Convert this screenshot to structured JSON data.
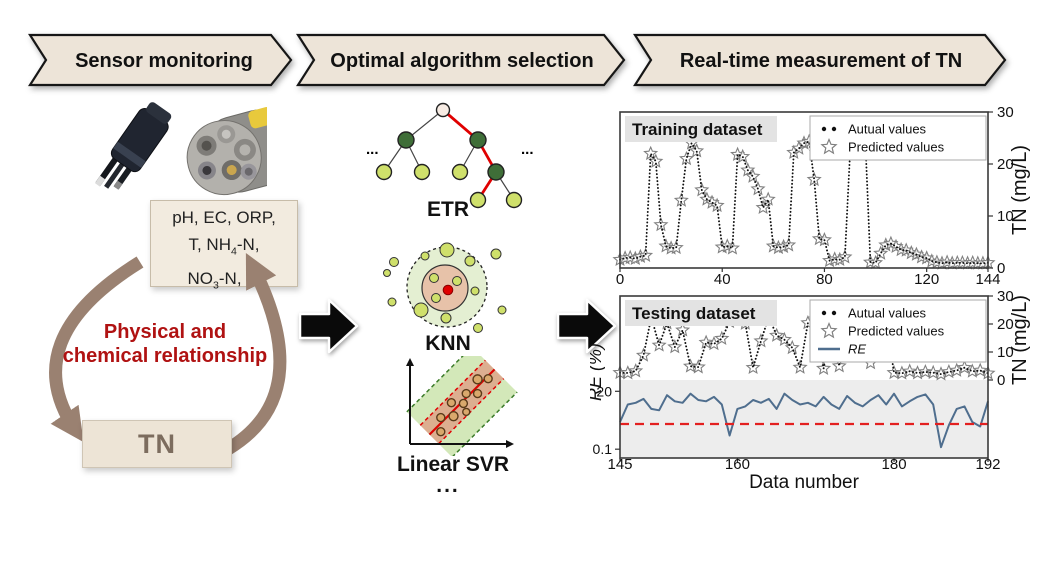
{
  "headers": [
    {
      "label": "Sensor monitoring"
    },
    {
      "label": "Optimal algorithm selection"
    },
    {
      "label": "Real-time measurement of TN"
    }
  ],
  "left_panel": {
    "params": {
      "line1": "pH, EC, ORP,",
      "line2_pre": "T, NH",
      "line2_sub": "4",
      "line2_post": "-N,",
      "line3_pre": "NO",
      "line3_sub": "3",
      "line3_post": "-N, ..."
    },
    "relationship_line1": "Physical and",
    "relationship_line2": "chemical relationship",
    "tn_label": "TN"
  },
  "middle_panel": {
    "etr_label": "ETR",
    "knn_label": "KNN",
    "svr_label": "Linear SVR",
    "dots": "...",
    "bottom_dots": "..."
  },
  "colors": {
    "chevron_fill": "#ede4d8",
    "accent_red_text": "#b01212",
    "cycle_arrow_brown": "#9a8171",
    "re_line_blue": "#4f6e8e",
    "threshold_red": "#e32020",
    "star_gray": "#808080",
    "band_gray": "#ededed",
    "node_dark_green": "#3f6e38",
    "node_light_green": "#cfe06b",
    "knn_inner_tan": "#e7c2a9",
    "knn_outer_green": "#e4efd2"
  },
  "chart_data": [
    {
      "id": "training",
      "type": "line",
      "title": "Training dataset",
      "x_range": [
        0,
        144
      ],
      "x_ticks": [
        0,
        40,
        80,
        120,
        144
      ],
      "y_right": {
        "label": "TN (mg/L)",
        "ticks": [
          0,
          10,
          20,
          30
        ],
        "range": [
          0,
          30
        ]
      },
      "legend_position": "top-right",
      "grid": false,
      "series": [
        {
          "name": "Autual values",
          "style": "dots",
          "x": [
            0,
            2,
            4,
            6,
            8,
            10,
            12,
            14,
            16,
            18,
            20,
            22,
            24,
            26,
            28,
            30,
            32,
            34,
            36,
            38,
            40,
            42,
            44,
            46,
            48,
            50,
            52,
            54,
            56,
            58,
            60,
            62,
            64,
            66,
            68,
            70,
            72,
            74,
            76,
            78,
            80,
            82,
            84,
            86,
            88,
            90,
            92,
            94,
            96,
            98,
            100,
            102,
            104,
            106,
            108,
            110,
            112,
            114,
            116,
            118,
            120,
            122,
            124,
            126,
            128,
            130,
            132,
            134,
            136,
            138,
            140,
            142,
            144
          ],
          "y": [
            1.6,
            1.9,
            2.0,
            1.8,
            2.2,
            2.4,
            22.0,
            20.5,
            8.3,
            4.2,
            3.8,
            3.9,
            13.0,
            21.0,
            24.0,
            22.5,
            15.0,
            13.2,
            12.6,
            12.0,
            4.0,
            4.2,
            3.8,
            21.8,
            21.4,
            18.8,
            17.6,
            15.2,
            11.6,
            13.2,
            4.2,
            3.9,
            4.1,
            4.4,
            22.2,
            23.0,
            24.0,
            24.3,
            17.0,
            5.6,
            5.4,
            1.4,
            1.7,
            1.6,
            2.1,
            22.0,
            23.6,
            25.0,
            24.6,
            1.1,
            1.0,
            2.8,
            4.4,
            4.7,
            4.1,
            3.5,
            3.4,
            2.9,
            2.6,
            2.1,
            1.9,
            1.3,
            1.1,
            0.9,
            1.1,
            0.9,
            1.0,
            1.0,
            0.9,
            1.0,
            0.9,
            0.9,
            1.0
          ]
        },
        {
          "name": "Predicted values",
          "style": "stars",
          "x": [
            0,
            2,
            4,
            6,
            8,
            10,
            12,
            14,
            16,
            18,
            20,
            22,
            24,
            26,
            28,
            30,
            32,
            34,
            36,
            38,
            40,
            42,
            44,
            46,
            48,
            50,
            52,
            54,
            56,
            58,
            60,
            62,
            64,
            66,
            68,
            70,
            72,
            74,
            76,
            78,
            80,
            82,
            84,
            86,
            88,
            90,
            92,
            94,
            96,
            98,
            100,
            102,
            104,
            106,
            108,
            110,
            112,
            114,
            116,
            118,
            120,
            122,
            124,
            126,
            128,
            130,
            132,
            134,
            136,
            138,
            140,
            142,
            144
          ],
          "y": [
            1.6,
            1.9,
            2.0,
            1.8,
            2.2,
            2.4,
            22.0,
            20.5,
            8.3,
            4.2,
            3.8,
            3.9,
            13.0,
            21.0,
            24.0,
            22.5,
            15.0,
            13.2,
            12.6,
            12.0,
            4.0,
            4.2,
            3.8,
            21.8,
            21.4,
            18.8,
            17.6,
            15.2,
            11.6,
            13.2,
            4.2,
            3.9,
            4.1,
            4.4,
            22.2,
            23.0,
            24.0,
            24.3,
            17.0,
            5.6,
            5.4,
            1.4,
            1.7,
            1.6,
            2.1,
            22.0,
            23.6,
            25.0,
            24.6,
            1.1,
            1.0,
            2.8,
            4.4,
            4.7,
            4.1,
            3.5,
            3.4,
            2.9,
            2.6,
            2.1,
            1.9,
            1.3,
            1.1,
            0.9,
            1.1,
            0.9,
            1.0,
            1.0,
            0.9,
            1.0,
            0.9,
            0.9,
            1.0
          ]
        }
      ]
    },
    {
      "id": "testing",
      "type": "line",
      "title": "Testing dataset",
      "x_label": "Data number",
      "x_range": [
        145,
        192
      ],
      "x_ticks": [
        145,
        160,
        180,
        192
      ],
      "y_right": {
        "label": "TN (mg/L)",
        "ticks": [
          0,
          10,
          20,
          30
        ],
        "range": [
          0,
          30
        ]
      },
      "y_left": {
        "label": "RE (%)",
        "ticks": [
          20,
          0.1
        ],
        "scale": "log"
      },
      "re_threshold_line": {
        "value": 1,
        "color": "#e32020",
        "style": "dashed"
      },
      "legend_position": "top-right",
      "grid": false,
      "series": [
        {
          "name": "Autual values",
          "style": "dots",
          "x": [
            145,
            146,
            147,
            148,
            149,
            150,
            151,
            152,
            153,
            154,
            155,
            156,
            157,
            158,
            159,
            160,
            161,
            162,
            163,
            164,
            165,
            166,
            167,
            168,
            169,
            170,
            171,
            172,
            173,
            174,
            175,
            176,
            177,
            178,
            179,
            180,
            181,
            182,
            183,
            184,
            185,
            186,
            187,
            188,
            189,
            190,
            191,
            192
          ],
          "y": [
            2.6,
            2.5,
            3.2,
            8.8,
            22.5,
            12.4,
            20.3,
            11.8,
            17.8,
            4.9,
            4.6,
            13.4,
            12.9,
            14.8,
            20.8,
            22.8,
            20.2,
            4.4,
            13.9,
            22.6,
            15.9,
            14.4,
            11.5,
            4.5,
            20.4,
            21.8,
            4.1,
            20.9,
            5.0,
            22.4,
            9.0,
            15.8,
            6.1,
            20.3,
            21.3,
            2.6,
            2.4,
            3.1,
            2.5,
            2.9,
            2.6,
            2.1,
            2.9,
            3.4,
            4.4,
            3.1,
            3.4,
            2.4
          ]
        },
        {
          "name": "Predicted values",
          "style": "stars",
          "x": [
            145,
            146,
            147,
            148,
            149,
            150,
            151,
            152,
            153,
            154,
            155,
            156,
            157,
            158,
            159,
            160,
            161,
            162,
            163,
            164,
            165,
            166,
            167,
            168,
            169,
            170,
            171,
            172,
            173,
            174,
            175,
            176,
            177,
            178,
            179,
            180,
            181,
            182,
            183,
            184,
            185,
            186,
            187,
            188,
            189,
            190,
            191,
            192
          ],
          "y": [
            2.6,
            2.5,
            3.2,
            8.8,
            22.5,
            12.4,
            20.3,
            11.8,
            17.8,
            4.9,
            4.6,
            13.4,
            12.9,
            14.8,
            20.8,
            22.8,
            20.2,
            4.4,
            13.9,
            22.6,
            15.9,
            14.4,
            11.5,
            4.5,
            20.4,
            21.8,
            4.1,
            20.9,
            5.0,
            22.4,
            9.0,
            15.8,
            6.1,
            20.3,
            21.3,
            2.6,
            2.4,
            3.1,
            2.5,
            2.9,
            2.6,
            2.1,
            2.9,
            3.4,
            4.4,
            3.1,
            3.4,
            2.4
          ]
        },
        {
          "name": "RE",
          "style": "line",
          "italic": true,
          "color": "#4f6e8e",
          "x": [
            145,
            146,
            147,
            148,
            149,
            150,
            151,
            152,
            153,
            154,
            155,
            156,
            157,
            158,
            159,
            160,
            161,
            162,
            163,
            164,
            165,
            166,
            167,
            168,
            169,
            170,
            171,
            172,
            173,
            174,
            175,
            176,
            177,
            178,
            179,
            180,
            181,
            182,
            183,
            184,
            185,
            186,
            187,
            188,
            189,
            190,
            191,
            192
          ],
          "y": [
            1.2,
            6,
            7,
            10,
            4,
            3.5,
            14,
            8,
            7,
            16,
            9,
            8,
            12,
            6,
            0.35,
            4,
            5,
            9,
            7,
            10,
            4,
            16,
            9,
            6,
            7,
            5,
            12,
            6,
            4,
            13,
            7,
            5,
            9,
            14,
            6,
            16,
            5,
            8,
            12,
            15,
            6,
            0.12,
            0.9,
            4,
            5,
            1.2,
            0.8,
            8
          ]
        }
      ]
    }
  ]
}
